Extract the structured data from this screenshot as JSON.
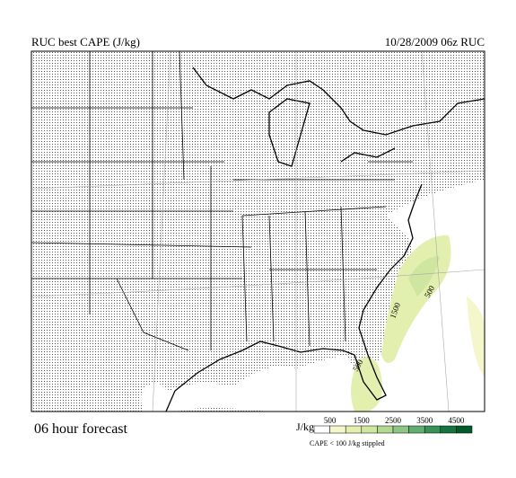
{
  "header": {
    "title": "RUC best CAPE (J/kg)",
    "valid": "10/28/2009  06z  RUC"
  },
  "footer": {
    "forecast": "06 hour forecast"
  },
  "contour_labels": [
    "500",
    "1500",
    "500"
  ],
  "legend": {
    "unit": "J/kg",
    "ticks": [
      "500",
      "1500",
      "2500",
      "3500",
      "4500"
    ],
    "colors": [
      "#ffffff",
      "#f4f6cc",
      "#e2efae",
      "#cfe6a0",
      "#b2d992",
      "#8ec486",
      "#63ad72",
      "#3a9158",
      "#147340",
      "#005a2a"
    ],
    "note": "CAPE < 100 J/kg stippled"
  }
}
